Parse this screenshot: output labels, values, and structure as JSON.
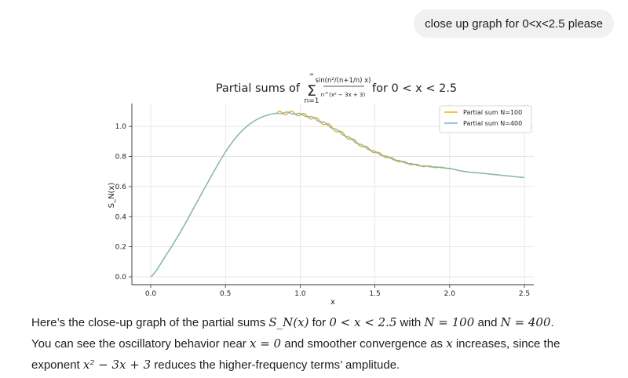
{
  "user_message": "close up graph for 0<x<2.5 please",
  "reply": {
    "line1_pre": "Here’s the close-up graph of the partial sums ",
    "line1_m1": "S_N(x)",
    "line1_mid1": " for ",
    "line1_m2": "0 < x < 2.5",
    "line1_mid2": " with ",
    "line1_m3": "N = 100",
    "line1_mid3": " and ",
    "line1_m4": "N = 400",
    "line1_end": ".",
    "line2_pre": "You can see the oscillatory behavior near ",
    "line2_m1": "x = 0",
    "line2_mid": " and smoother convergence as ",
    "line2_m2": "x",
    "line2_end": " increases, since the",
    "line3_pre": "exponent ",
    "line3_m1": "x² − 3x + 3",
    "line3_end": " reduces the higher-frequency terms’ amplitude."
  },
  "chart_data": {
    "type": "line",
    "title_prefix": "Partial sums of",
    "title_sum_upper": "∞",
    "title_sum_lower": "n=1",
    "title_term_numerator": "sin(n²/(n+1/n) x)",
    "title_term_denominator": "n^(x² − 3x + 3)",
    "title_suffix": "for 0 < x < 2.5",
    "xlabel": "x",
    "ylabel": "S_N(x)",
    "xlim": [
      0,
      2.5
    ],
    "ylim": [
      0,
      1.1
    ],
    "x_ticks": [
      0.0,
      0.5,
      1.0,
      1.5,
      2.0,
      2.5
    ],
    "x_tick_labels": [
      "0.0",
      "0.5",
      "1.0",
      "1.5",
      "2.0",
      "2.5"
    ],
    "y_ticks": [
      0.0,
      0.2,
      0.4,
      0.6,
      0.8,
      1.0
    ],
    "y_tick_labels": [
      "0.0",
      "0.2",
      "0.4",
      "0.6",
      "0.8",
      "1.0"
    ],
    "grid": true,
    "legend_position": "top-right",
    "x": [
      0.0,
      0.1,
      0.2,
      0.3,
      0.4,
      0.5,
      0.6,
      0.7,
      0.8,
      0.9,
      1.0,
      1.1,
      1.2,
      1.3,
      1.4,
      1.5,
      1.6,
      1.7,
      1.8,
      1.9,
      2.0,
      2.1,
      2.2,
      2.3,
      2.4,
      2.5
    ],
    "series": [
      {
        "name": "Partial sum N=100",
        "color": "#f0ad00",
        "values": [
          0.0,
          0.14,
          0.3,
          0.48,
          0.66,
          0.83,
          0.96,
          1.04,
          1.08,
          1.09,
          1.08,
          1.05,
          1.0,
          0.94,
          0.88,
          0.83,
          0.79,
          0.76,
          0.74,
          0.73,
          0.72,
          0.7,
          0.69,
          0.68,
          0.67,
          0.66
        ],
        "oscillation_amplitude": 0.012
      },
      {
        "name": "Partial sum N=400",
        "color": "#7fb6c9",
        "values": [
          0.0,
          0.14,
          0.3,
          0.48,
          0.66,
          0.83,
          0.96,
          1.04,
          1.08,
          1.09,
          1.08,
          1.05,
          1.0,
          0.94,
          0.88,
          0.83,
          0.79,
          0.76,
          0.74,
          0.73,
          0.72,
          0.7,
          0.69,
          0.68,
          0.67,
          0.66
        ],
        "oscillation_amplitude": 0.006
      }
    ]
  }
}
